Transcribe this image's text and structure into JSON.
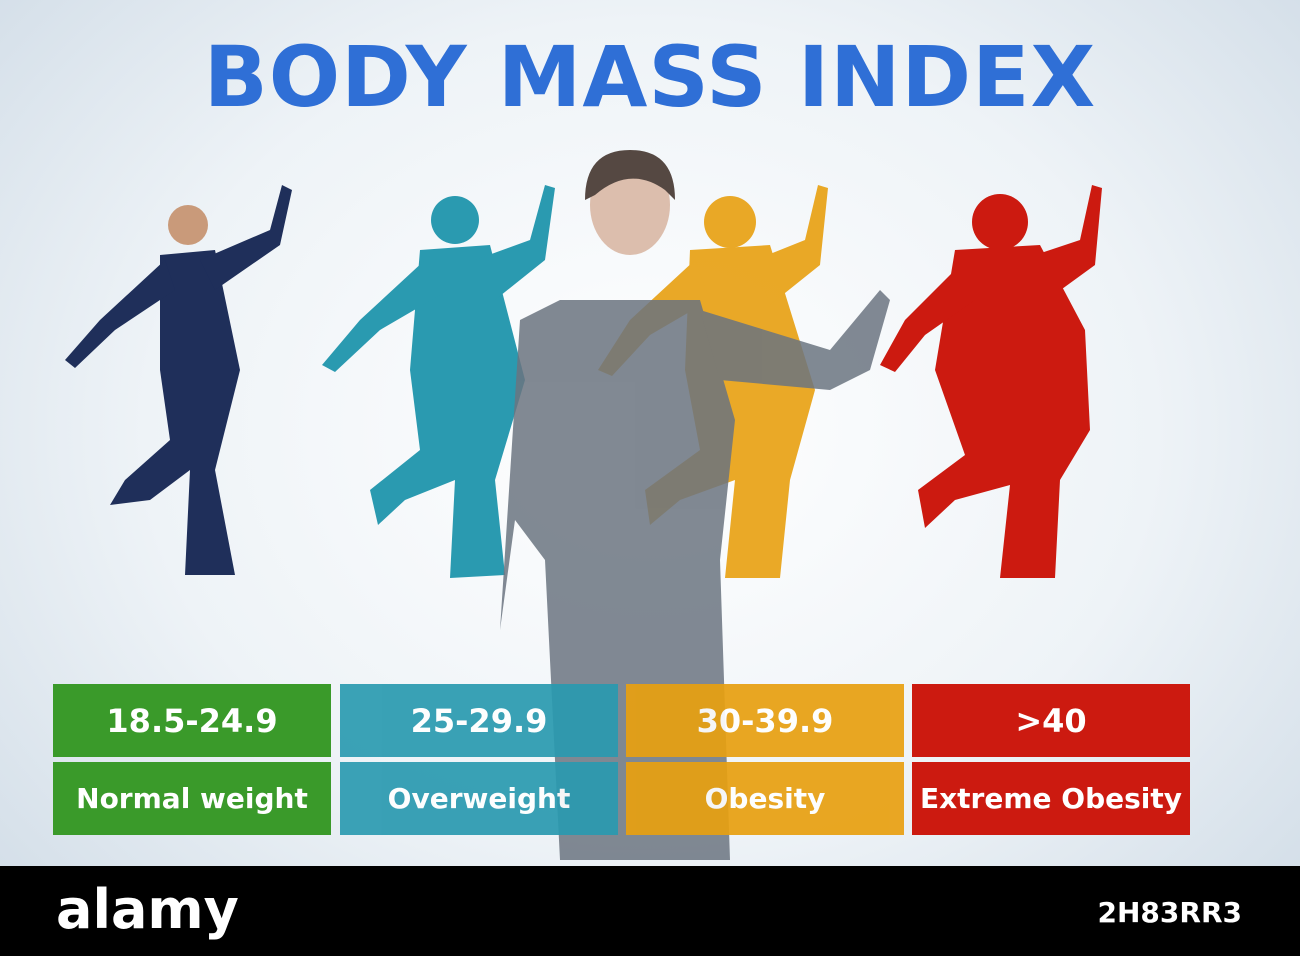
{
  "header": {
    "title": "BODY MASS INDEX"
  },
  "categories": [
    {
      "range": "18.5-24.9",
      "label": "Normal weight"
    },
    {
      "range": "25-29.9",
      "label": "Overweight"
    },
    {
      "range": "30-39.9",
      "label": "Obesity"
    },
    {
      "range": ">40",
      "label": "Extreme Obesity"
    }
  ],
  "footer": {
    "brand": "alamy",
    "image_id": "2H83RR3"
  }
}
